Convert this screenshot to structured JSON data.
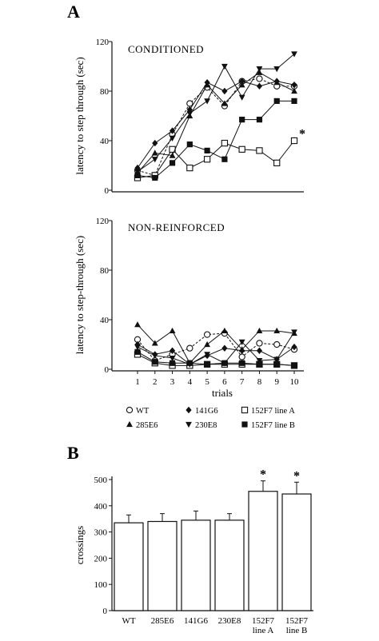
{
  "panels": {
    "a_label": "A",
    "b_label": "B"
  },
  "legend": [
    {
      "label": "WT",
      "marker": "circle-open"
    },
    {
      "label": "141G6",
      "marker": "diamond"
    },
    {
      "label": "152F7 line A",
      "marker": "square-open"
    },
    {
      "label": "285E6",
      "marker": "triangle-up"
    },
    {
      "label": "230E8",
      "marker": "triangle-down"
    },
    {
      "label": "152F7 line B",
      "marker": "square-filled"
    }
  ],
  "chart_data": [
    {
      "type": "line",
      "title": "CONDITIONED",
      "xlabel": "",
      "ylabel": "latency to step through (sec)",
      "ylim": [
        0,
        120
      ],
      "yticks": [
        "0",
        "40",
        "80",
        "120"
      ],
      "x": [
        1,
        2,
        3,
        4,
        5,
        6,
        7,
        8,
        9,
        10
      ],
      "series": [
        {
          "name": "WT",
          "marker": "circle-open",
          "values": [
            16,
            12,
            45,
            70,
            83,
            68,
            88,
            90,
            84,
            84
          ]
        },
        {
          "name": "141G6",
          "marker": "diamond",
          "values": [
            18,
            38,
            48,
            65,
            87,
            80,
            88,
            84,
            88,
            85
          ]
        },
        {
          "name": "152F7 line A",
          "marker": "square-open",
          "values": [
            10,
            12,
            33,
            18,
            25,
            38,
            33,
            32,
            22,
            40
          ]
        },
        {
          "name": "285E6",
          "marker": "triangle-up",
          "values": [
            14,
            30,
            28,
            60,
            85,
            70,
            85,
            95,
            87,
            80
          ]
        },
        {
          "name": "230E8",
          "marker": "triangle-down",
          "values": [
            15,
            25,
            42,
            62,
            72,
            100,
            75,
            98,
            98,
            110
          ]
        },
        {
          "name": "152F7 line B",
          "marker": "square-filled",
          "values": [
            12,
            10,
            22,
            37,
            32,
            25,
            57,
            57,
            72,
            72
          ]
        }
      ],
      "annotations": [
        {
          "x": 10,
          "y": 45,
          "text": "*"
        }
      ]
    },
    {
      "type": "line",
      "title": "NON-REINFORCED",
      "xlabel": "trials",
      "ylabel": "latency to step-through (sec)",
      "ylim": [
        0,
        120
      ],
      "yticks": [
        "0",
        "40",
        "80",
        "120"
      ],
      "x": [
        1,
        2,
        3,
        4,
        5,
        6,
        7,
        8,
        9,
        10
      ],
      "xticks": [
        "1",
        "2",
        "3",
        "4",
        "5",
        "6",
        "7",
        "8",
        "9",
        "10"
      ],
      "series": [
        {
          "name": "WT",
          "marker": "circle-open",
          "values": [
            24,
            7,
            12,
            17,
            28,
            29,
            10,
            21,
            20,
            16
          ]
        },
        {
          "name": "141G6",
          "marker": "diamond",
          "values": [
            20,
            12,
            15,
            4,
            11,
            17,
            15,
            15,
            8,
            18
          ]
        },
        {
          "name": "152F7 line A",
          "marker": "square-open",
          "values": [
            12,
            5,
            3,
            3,
            4,
            4,
            4,
            4,
            4,
            3
          ]
        },
        {
          "name": "285E6",
          "marker": "triangle-up",
          "values": [
            36,
            21,
            31,
            5,
            20,
            31,
            16,
            31,
            31,
            29
          ]
        },
        {
          "name": "230E8",
          "marker": "triangle-down",
          "values": [
            18,
            11,
            9,
            4,
            12,
            5,
            22,
            7,
            8,
            30
          ]
        },
        {
          "name": "152F7 line B",
          "marker": "square-filled",
          "values": [
            14,
            6,
            5,
            5,
            4,
            5,
            5,
            4,
            4,
            3
          ]
        }
      ]
    },
    {
      "type": "bar",
      "xlabel": "",
      "ylabel": "crossings",
      "ylim": [
        0,
        500
      ],
      "yticks": [
        "0",
        "100",
        "200",
        "300",
        "400",
        "500"
      ],
      "categories": [
        "WT",
        "285E6",
        "141G6",
        "230E8",
        "152F7 line A",
        "152F7 line B"
      ],
      "category_lines": [
        [
          "WT"
        ],
        [
          "285E6"
        ],
        [
          "141G6"
        ],
        [
          "230E8"
        ],
        [
          "152F7",
          "line A"
        ],
        [
          "152F7",
          "line B"
        ]
      ],
      "values": [
        335,
        340,
        345,
        345,
        455,
        445
      ],
      "errors": [
        30,
        30,
        35,
        25,
        40,
        45
      ],
      "significant": [
        "",
        "",
        "",
        "",
        "*",
        "*"
      ]
    }
  ]
}
